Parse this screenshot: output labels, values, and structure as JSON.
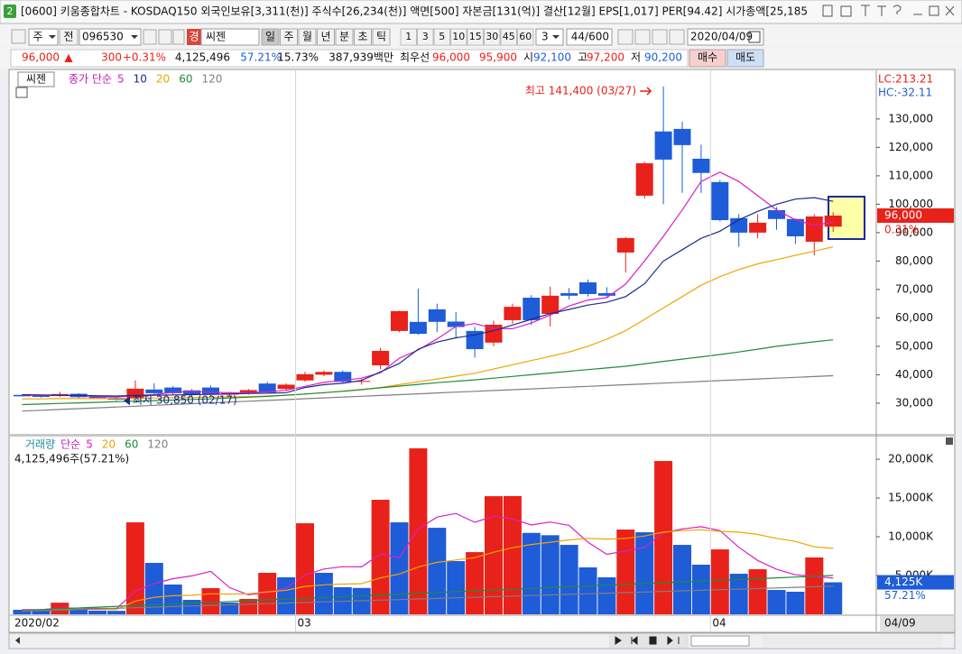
{
  "window": {
    "tab": "2",
    "title": "[0600] 키움종합차트 - KOSDAQ150 외국인보유[3,311(천)] 주식수[26,234(천)] 액면[500] 자본금[131(억)] 결산[12월] EPS[1,017] PER[94.42] 시가총액[25,185"
  },
  "toolbar": {
    "market": "주",
    "prev": "전",
    "code": "096530",
    "badge": "경",
    "name": "씨젠",
    "periods": [
      "일",
      "주",
      "월",
      "년",
      "분",
      "초",
      "틱"
    ],
    "intervals": [
      "1",
      "3",
      "5",
      "10",
      "15",
      "30",
      "45",
      "60"
    ],
    "count_select": "3",
    "range": "44/600",
    "date": "2020/04/09"
  },
  "quote": {
    "price": "96,000",
    "arrow": "▲",
    "change": "300",
    "change_pct": "+0.31%",
    "volume": "4,125,496",
    "volume_ratio": "57.21%",
    "turnover": "15.73%",
    "amount": "387,939백만",
    "best_label": "최우선",
    "best_ask": "96,000",
    "best_bid": "95,900",
    "open_label": "시",
    "open": "92,100",
    "high_label": "고",
    "high": "97,200",
    "low_label": "저",
    "low": "90,200",
    "buy": "매수",
    "sell": "매도"
  },
  "chart_data": [
    {
      "type": "candlestick",
      "title": "씨젠",
      "legend_label": "종가 단순",
      "lc_label": "LC:213.21",
      "hc_label": "HC:-32.11",
      "high_label": "최고 141,400 (03/27)",
      "low_label": "최저 30,850 (02/17)",
      "last_price_label": "96,000",
      "last_change_label": "0.31%",
      "up_color": "#e8221a",
      "down_color": "#1e5cd8",
      "ylim": [
        19500,
        147100
      ],
      "yticks": [
        {
          "value": 30000,
          "label": "30,000"
        },
        {
          "value": 40000,
          "label": "40,000"
        },
        {
          "value": 50000,
          "label": "50,000"
        },
        {
          "value": 60000,
          "label": "60,000"
        },
        {
          "value": 70000,
          "label": "70,000"
        },
        {
          "value": 80000,
          "label": "80,000"
        },
        {
          "value": 90000,
          "label": "90,000"
        },
        {
          "value": 100000,
          "label": "100,000"
        },
        {
          "value": 110000,
          "label": "110,000"
        },
        {
          "value": 120000,
          "label": "120,000"
        },
        {
          "value": 130000,
          "label": "130,000"
        }
      ],
      "open": [
        32900,
        32600,
        32500,
        33300,
        32200,
        31800,
        31500,
        34800,
        35500,
        34500,
        35500,
        33000,
        33600,
        36900,
        35000,
        38000,
        40000,
        41000,
        37500,
        43300,
        55400,
        58600,
        63000,
        58700,
        55400,
        51300,
        59200,
        67100,
        61400,
        68700,
        72500,
        68700,
        83000,
        103000,
        125600,
        126500,
        116000,
        107800,
        95100,
        90000,
        97900,
        94800,
        86800,
        92100
      ],
      "high": [
        33100,
        32900,
        34000,
        33500,
        32600,
        32000,
        38000,
        37000,
        36000,
        35000,
        36200,
        34000,
        35000,
        37500,
        37000,
        41000,
        41500,
        41500,
        38500,
        49500,
        62500,
        70300,
        65000,
        62000,
        56800,
        59000,
        65000,
        68000,
        71000,
        70500,
        73500,
        70800,
        88500,
        115000,
        141400,
        129000,
        121000,
        108500,
        96500,
        96500,
        99000,
        95000,
        96500,
        97200
      ],
      "low": [
        32300,
        32000,
        32200,
        31800,
        31500,
        30850,
        31300,
        32800,
        33000,
        32500,
        32500,
        32000,
        33000,
        33800,
        34300,
        37500,
        39500,
        37000,
        36500,
        42000,
        55000,
        54000,
        55000,
        53000,
        46000,
        50000,
        58000,
        57500,
        57000,
        66500,
        67500,
        67000,
        76000,
        102000,
        100000,
        104000,
        104000,
        94000,
        85000,
        88000,
        91000,
        86000,
        82000,
        90200
      ],
      "close": [
        32400,
        32200,
        33200,
        32100,
        31800,
        31200,
        35100,
        33500,
        33500,
        33000,
        33200,
        33500,
        34600,
        33800,
        36500,
        40200,
        41000,
        37500,
        37800,
        48400,
        62400,
        54400,
        58600,
        56800,
        49000,
        57600,
        63900,
        59200,
        67800,
        67800,
        68400,
        67800,
        88100,
        114400,
        115700,
        120800,
        111000,
        94400,
        90000,
        93500,
        94800,
        88700,
        95700,
        96000
      ],
      "series": [
        {
          "name": "5",
          "color": "#d81fc8",
          "values": [
            32800,
            32700,
            32700,
            32600,
            32300,
            32100,
            32700,
            33000,
            33800,
            34100,
            33800,
            33700,
            33700,
            34000,
            34500,
            35900,
            37300,
            38000,
            38800,
            40700,
            45800,
            48700,
            52600,
            57000,
            58000,
            56300,
            56200,
            58200,
            61000,
            64200,
            66300,
            67100,
            71900,
            80000,
            88700,
            98000,
            108000,
            111300,
            108000,
            103000,
            98000,
            94500,
            92500,
            93800
          ]
        },
        {
          "name": "10",
          "color": "#1b2a8c",
          "values": [
            33000,
            32900,
            32800,
            32700,
            32600,
            32500,
            32700,
            32800,
            32900,
            33000,
            33100,
            33200,
            33400,
            33500,
            33700,
            35500,
            36500,
            37000,
            38000,
            41000,
            44000,
            49000,
            51500,
            53000,
            54000,
            55500,
            57500,
            59500,
            61500,
            63000,
            64500,
            65500,
            67500,
            72000,
            80000,
            84000,
            88000,
            90500,
            94500,
            97500,
            100000,
            101800,
            102300,
            101000
          ]
        },
        {
          "name": "20",
          "color": "#f0a400",
          "values": [
            31500,
            31500,
            31600,
            31600,
            31600,
            31600,
            31700,
            31800,
            31900,
            32000,
            32100,
            32200,
            32300,
            32500,
            32800,
            33200,
            33700,
            34200,
            34700,
            35500,
            36500,
            37500,
            38500,
            39500,
            40500,
            42000,
            43500,
            45000,
            46500,
            48000,
            50000,
            52500,
            55500,
            59500,
            63500,
            67500,
            71500,
            74500,
            77000,
            79000,
            80500,
            82000,
            83500,
            85000
          ]
        },
        {
          "name": "60",
          "color": "#1e8c3a",
          "values": [
            29500,
            29700,
            29900,
            30100,
            30300,
            30500,
            30700,
            30900,
            31100,
            31300,
            31500,
            31800,
            32100,
            32400,
            32800,
            33200,
            33700,
            34200,
            34800,
            35400,
            36000,
            36600,
            37200,
            37700,
            38200,
            38800,
            39400,
            40000,
            40600,
            41200,
            41800,
            42400,
            43000,
            43800,
            44700,
            45500,
            46300,
            47100,
            48000,
            49000,
            50000,
            50800,
            51600,
            52300
          ]
        },
        {
          "name": "120",
          "color": "#7f7f7f",
          "values": [
            27200,
            27490,
            27780,
            28070,
            28360,
            28650,
            28940,
            29230,
            29520,
            29810,
            30100,
            30390,
            30680,
            30970,
            31260,
            31550,
            31840,
            32130,
            32420,
            32710,
            33000,
            33290,
            33580,
            33870,
            34160,
            34450,
            34740,
            35030,
            35320,
            35610,
            35900,
            36190,
            36480,
            36770,
            37060,
            37350,
            37640,
            37930,
            38220,
            38510,
            38800,
            39090,
            39380,
            39670
          ]
        }
      ]
    },
    {
      "type": "bar",
      "title": "거래량",
      "legend_label": "단순",
      "volume_label": "4,125,496주(57.21%)",
      "last_value_label": "4,125K",
      "last_ratio_label": "57.21%",
      "cursor_date_label": "04/09",
      "up_color": "#e8221a",
      "down_color": "#1e5cd8",
      "categories": [
        "2020/02",
        null,
        null,
        null,
        null,
        null,
        null,
        null,
        null,
        null,
        null,
        null,
        null,
        null,
        null,
        "03",
        null,
        null,
        null,
        null,
        null,
        null,
        null,
        null,
        null,
        null,
        null,
        null,
        null,
        null,
        null,
        null,
        null,
        null,
        null,
        null,
        null,
        "04",
        null,
        null,
        null,
        null,
        null,
        null
      ],
      "values": [
        580,
        560,
        1500,
        700,
        470,
        450,
        11860,
        6630,
        3840,
        1860,
        3370,
        1510,
        1980,
        5350,
        4770,
        11740,
        5350,
        3490,
        3400,
        14770,
        11860,
        21400,
        11160,
        6860,
        8020,
        15230,
        15250,
        10500,
        10200,
        8950,
        6050,
        4770,
        10930,
        10580,
        19770,
        8950,
        6400,
        8370,
        5230,
        5810,
        3140,
        2910,
        7330,
        4125.496
      ],
      "ylim": [
        0,
        22800
      ],
      "yticks": [
        {
          "value": 5000,
          "label": "5,000K"
        },
        {
          "value": 10000,
          "label": "10,000K"
        },
        {
          "value": 15000,
          "label": "15,000K"
        },
        {
          "value": 20000,
          "label": "20,000K"
        }
      ],
      "series": [
        {
          "name": "5",
          "color": "#d81fc8",
          "values": [
            600,
            600,
            800,
            800,
            760,
            740,
            2960,
            3950,
            4590,
            4950,
            5540,
            3440,
            2510,
            2810,
            3400,
            5070,
            5840,
            6140,
            6120,
            7760,
            7300,
            11000,
            12540,
            13010,
            11860,
            12650,
            12300,
            11520,
            11900,
            11470,
            9290,
            7730,
            8150,
            8620,
            10500,
            11000,
            11300,
            10800,
            8640,
            6950,
            5800,
            5090,
            4880,
            4660
          ]
        },
        {
          "name": "20",
          "color": "#f0a400",
          "values": [
            500,
            520,
            620,
            650,
            640,
            620,
            1700,
            2200,
            2400,
            2450,
            2650,
            2600,
            2650,
            2900,
            3100,
            3600,
            3800,
            3900,
            3950,
            4700,
            5200,
            6100,
            6700,
            7000,
            7300,
            8000,
            8600,
            9000,
            9300,
            9600,
            9800,
            9700,
            9800,
            10100,
            10600,
            10800,
            10900,
            10700,
            10600,
            10300,
            9800,
            9400,
            8700,
            8500
          ]
        },
        {
          "name": "60",
          "color": "#1e8c3a",
          "values": [
            500,
            605,
            710,
            815,
            920,
            1025,
            1130,
            1235,
            1340,
            1445,
            1550,
            1655,
            1760,
            1865,
            1970,
            2075,
            2180,
            2285,
            2390,
            2495,
            2600,
            2705,
            2810,
            2915,
            3020,
            3125,
            3230,
            3335,
            3440,
            3545,
            3650,
            3755,
            3860,
            3965,
            4070,
            4175,
            4280,
            4385,
            4490,
            4595,
            4700,
            4805,
            4910,
            5015
          ]
        },
        {
          "name": "120",
          "color": "#7f7f7f",
          "values": [
            400,
            475,
            550,
            625,
            700,
            775,
            850,
            925,
            1000,
            1075,
            1150,
            1225,
            1300,
            1375,
            1450,
            1525,
            1600,
            1675,
            1750,
            1825,
            1900,
            1975,
            2050,
            2125,
            2200,
            2275,
            2350,
            2425,
            2500,
            2575,
            2650,
            2725,
            2800,
            2875,
            2950,
            3025,
            3100,
            3175,
            3250,
            3325,
            3400,
            3475,
            3550,
            3625
          ]
        }
      ]
    }
  ]
}
